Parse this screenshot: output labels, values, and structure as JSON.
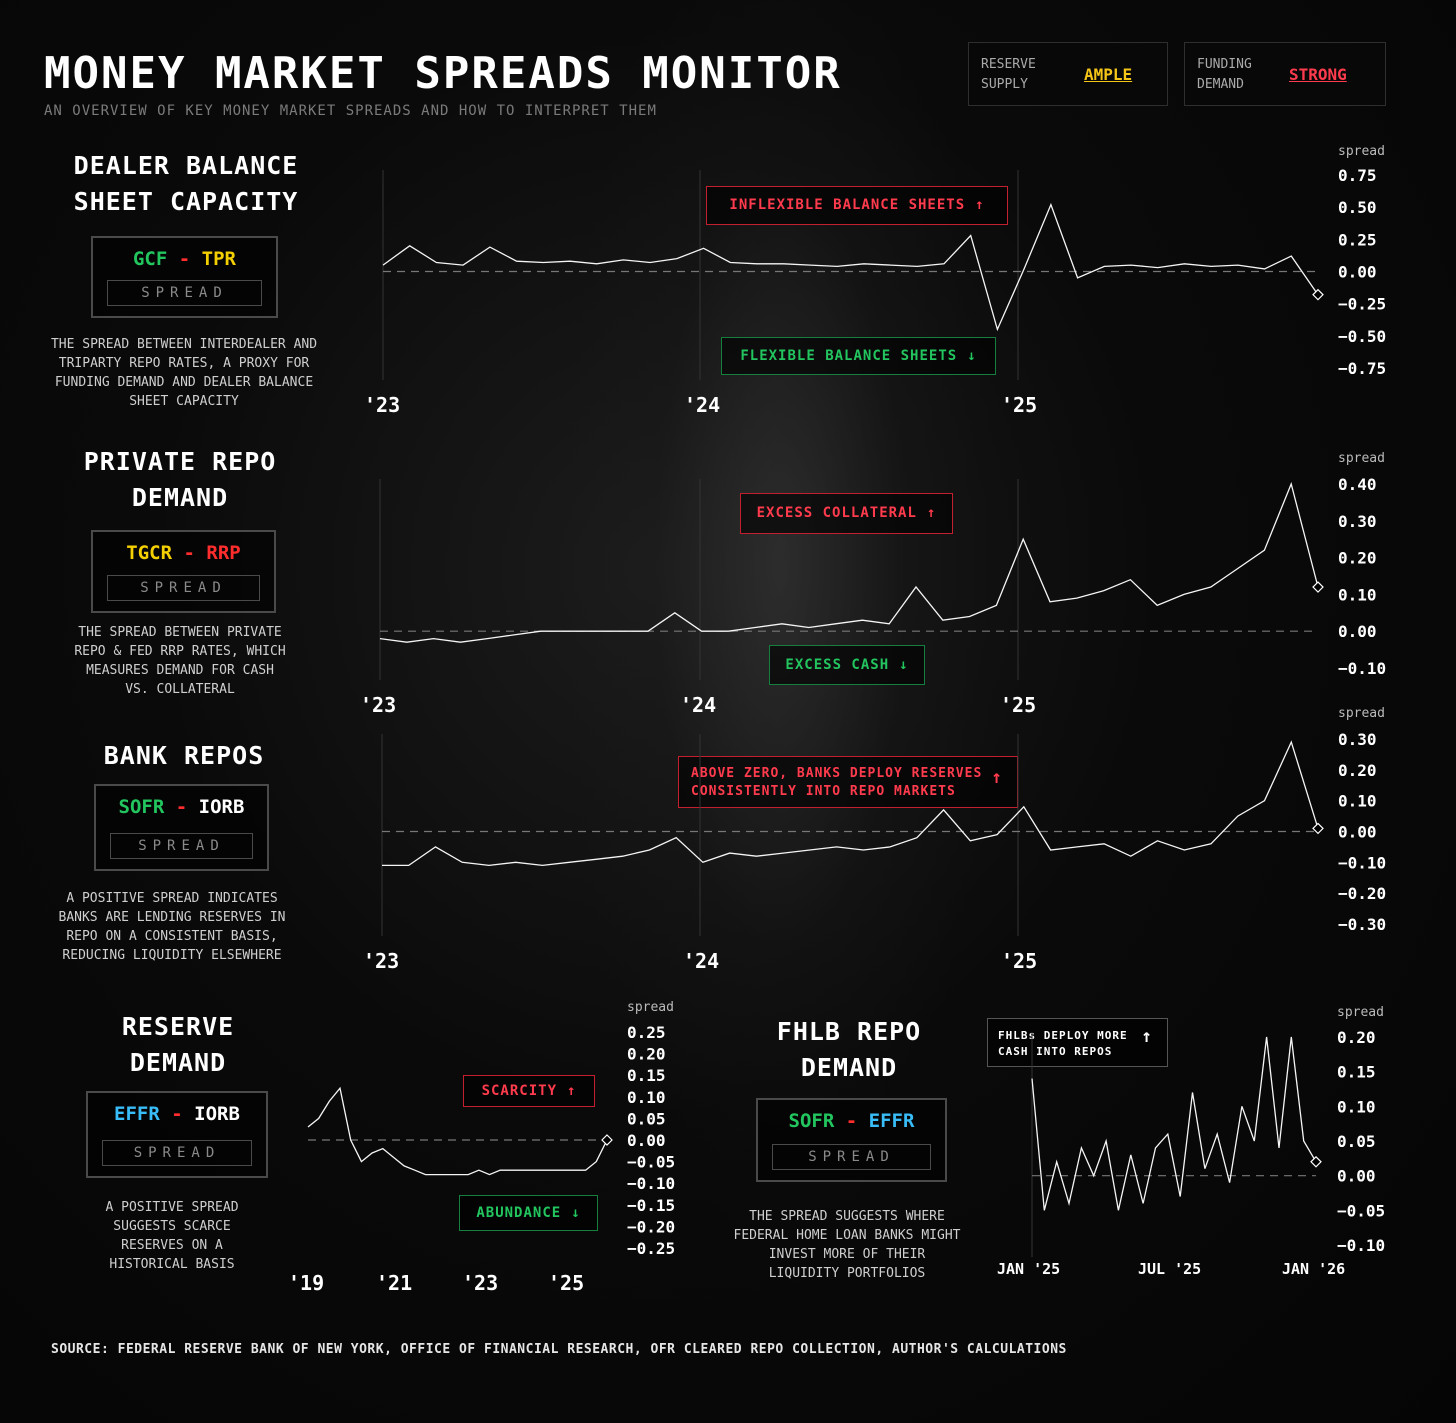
{
  "header": {
    "title": "MONEY MARKET SPREADS MONITOR",
    "subtitle": "AN OVERVIEW OF KEY MONEY MARKET SPREADS AND HOW TO INTERPRET THEM"
  },
  "indicators": [
    {
      "label": "RESERVE\nSUPPLY",
      "value": "AMPLE",
      "color": "#f5c518"
    },
    {
      "label": "FUNDING\nDEMAND",
      "value": "STRONG",
      "color": "#ff3b4d"
    }
  ],
  "colors": {
    "green": "#22c55e",
    "yellow": "#f5d000",
    "red": "#ff2d2d",
    "blue": "#38bdf8",
    "white": "#ffffff"
  },
  "sections": {
    "dealer": {
      "title_line1": "DEALER BALANCE",
      "title_line2": "SHEET CAPACITY",
      "pair_a": "GCF",
      "pair_sep": "-",
      "pair_b": "TPR",
      "spread_label": "SPREAD",
      "desc": [
        "THE SPREAD BETWEEN INTERDEALER AND",
        "TRIPARTY REPO RATES, A PROXY FOR",
        "FUNDING DEMAND AND DEALER BALANCE",
        "SHEET CAPACITY"
      ],
      "ann_up": "INFLEXIBLE BALANCE SHEETS",
      "ann_down": "FLEXIBLE BALANCE SHEETS",
      "arrow_up": "↑",
      "arrow_down": "↓"
    },
    "private": {
      "title_line1": "PRIVATE REPO",
      "title_line2": "DEMAND",
      "pair_a": "TGCR",
      "pair_sep": "-",
      "pair_b": "RRP",
      "spread_label": "SPREAD",
      "desc": [
        "THE SPREAD BETWEEN PRIVATE",
        "REPO & FED RRP RATES, WHICH",
        "MEASURES DEMAND FOR CASH",
        "VS. COLLATERAL"
      ],
      "ann_up": "EXCESS COLLATERAL",
      "ann_down": "EXCESS CASH",
      "arrow_up": "↑",
      "arrow_down": "↓"
    },
    "bank": {
      "title_line1": "BANK REPOS",
      "pair_a": "SOFR",
      "pair_sep": "-",
      "pair_b": "IORB",
      "spread_label": "SPREAD",
      "desc": [
        "A POSITIVE SPREAD INDICATES",
        "BANKS ARE LENDING RESERVES IN",
        "REPO ON A CONSISTENT BASIS,",
        "REDUCING LIQUIDITY ELSEWHERE"
      ],
      "ann_up_line1": "ABOVE ZERO, BANKS DEPLOY RESERVES",
      "ann_up_line2": "CONSISTENTLY INTO REPO MARKETS",
      "arrow_up": "↑"
    },
    "reserve": {
      "title_line1": "RESERVE",
      "title_line2": "DEMAND",
      "pair_a": "EFFR",
      "pair_sep": "-",
      "pair_b": "IORB",
      "spread_label": "SPREAD",
      "desc": [
        "A POSITIVE SPREAD",
        "SUGGESTS SCARCE",
        "RESERVES ON A",
        "HISTORICAL BASIS"
      ],
      "ann_up": "SCARCITY",
      "ann_down": "ABUNDANCE",
      "arrow_up": "↑",
      "arrow_down": "↓"
    },
    "fhlb": {
      "title_line1": "FHLB REPO",
      "title_line2": "DEMAND",
      "pair_a": "SOFR",
      "pair_sep": "-",
      "pair_b": "EFFR",
      "spread_label": "SPREAD",
      "desc": [
        "THE SPREAD SUGGESTS WHERE",
        "FEDERAL HOME LOAN BANKS MIGHT",
        "INVEST MORE OF THEIR",
        "LIQUIDITY PORTFOLIOS"
      ],
      "ann_up_line1": "FHLBs DEPLOY MORE",
      "ann_up_line2": "CASH INTO REPOS",
      "arrow_up": "↑"
    }
  },
  "source": "SOURCE: FEDERAL RESERVE BANK OF NEW YORK, OFFICE OF FINANCIAL RESEARCH, OFR CLEARED REPO COLLECTION, AUTHOR'S CALCULATIONS",
  "chart_data": [
    {
      "id": "dealer",
      "type": "line",
      "ylabel": "spread",
      "ylim": [
        -0.75,
        0.75
      ],
      "yticks": [
        "0.75",
        "0.50",
        "0.25",
        "0.00",
        "−0.25",
        "−0.50",
        "−0.75"
      ],
      "xticks": [
        "'23",
        "'24",
        "'25"
      ],
      "xrange": [
        "2023-01",
        "2026-01"
      ],
      "series": [
        {
          "x": [
            "2023-01",
            "2023-02",
            "2023-03",
            "2023-04",
            "2023-05",
            "2023-06",
            "2023-07",
            "2023-08",
            "2023-09",
            "2023-10",
            "2023-11",
            "2023-12",
            "2024-01",
            "2024-02",
            "2024-03",
            "2024-04",
            "2024-05",
            "2024-06",
            "2024-07",
            "2024-08",
            "2024-09",
            "2024-10",
            "2024-11",
            "2024-12",
            "2025-01",
            "2025-02",
            "2025-03",
            "2025-04",
            "2025-05",
            "2025-06",
            "2025-07",
            "2025-08",
            "2025-09",
            "2025-10",
            "2025-11",
            "2025-12"
          ],
          "values": [
            0.05,
            0.2,
            0.07,
            0.05,
            0.19,
            0.08,
            0.07,
            0.08,
            0.06,
            0.09,
            0.07,
            0.1,
            0.18,
            0.07,
            0.06,
            0.06,
            0.05,
            0.04,
            0.06,
            0.05,
            0.04,
            0.06,
            0.28,
            -0.45,
            0.02,
            0.52,
            -0.05,
            0.04,
            0.05,
            0.03,
            0.06,
            0.04,
            0.05,
            0.02,
            0.12,
            -0.18
          ]
        }
      ]
    },
    {
      "id": "private",
      "type": "line",
      "ylabel": "spread",
      "ylim": [
        -0.1,
        0.4
      ],
      "yticks": [
        "0.40",
        "0.30",
        "0.20",
        "0.10",
        "0.00",
        "−0.10"
      ],
      "xticks": [
        "'23",
        "'24",
        "'25"
      ],
      "xrange": [
        "2023-01",
        "2026-01"
      ],
      "series": [
        {
          "x": [
            "2023-01",
            "2023-02",
            "2023-03",
            "2023-04",
            "2023-05",
            "2023-06",
            "2023-07",
            "2023-08",
            "2023-09",
            "2023-10",
            "2023-11",
            "2023-12",
            "2024-01",
            "2024-02",
            "2024-03",
            "2024-04",
            "2024-05",
            "2024-06",
            "2024-07",
            "2024-08",
            "2024-09",
            "2024-10",
            "2024-11",
            "2024-12",
            "2025-01",
            "2025-02",
            "2025-03",
            "2025-04",
            "2025-05",
            "2025-06",
            "2025-07",
            "2025-08",
            "2025-09",
            "2025-10",
            "2025-11",
            "2025-12"
          ],
          "values": [
            -0.02,
            -0.03,
            -0.02,
            -0.03,
            -0.02,
            -0.01,
            0.0,
            0.0,
            0.0,
            0.0,
            0.0,
            0.05,
            0.0,
            0.0,
            0.01,
            0.02,
            0.01,
            0.02,
            0.03,
            0.02,
            0.12,
            0.03,
            0.04,
            0.07,
            0.25,
            0.08,
            0.09,
            0.11,
            0.14,
            0.07,
            0.1,
            0.12,
            0.17,
            0.22,
            0.4,
            0.12
          ]
        }
      ]
    },
    {
      "id": "bank",
      "type": "line",
      "ylabel": "spread",
      "ylim": [
        -0.3,
        0.3
      ],
      "yticks": [
        "0.30",
        "0.20",
        "0.10",
        "0.00",
        "−0.10",
        "−0.20",
        "−0.30"
      ],
      "xticks": [
        "'23",
        "'24",
        "'25"
      ],
      "xrange": [
        "2023-01",
        "2026-01"
      ],
      "series": [
        {
          "x": [
            "2023-01",
            "2023-02",
            "2023-03",
            "2023-04",
            "2023-05",
            "2023-06",
            "2023-07",
            "2023-08",
            "2023-09",
            "2023-10",
            "2023-11",
            "2023-12",
            "2024-01",
            "2024-02",
            "2024-03",
            "2024-04",
            "2024-05",
            "2024-06",
            "2024-07",
            "2024-08",
            "2024-09",
            "2024-10",
            "2024-11",
            "2024-12",
            "2025-01",
            "2025-02",
            "2025-03",
            "2025-04",
            "2025-05",
            "2025-06",
            "2025-07",
            "2025-08",
            "2025-09",
            "2025-10",
            "2025-11",
            "2025-12"
          ],
          "values": [
            -0.11,
            -0.11,
            -0.05,
            -0.1,
            -0.11,
            -0.1,
            -0.11,
            -0.1,
            -0.09,
            -0.08,
            -0.06,
            -0.02,
            -0.1,
            -0.07,
            -0.08,
            -0.07,
            -0.06,
            -0.05,
            -0.06,
            -0.05,
            -0.02,
            0.07,
            -0.03,
            -0.01,
            0.08,
            -0.06,
            -0.05,
            -0.04,
            -0.08,
            -0.03,
            -0.06,
            -0.04,
            0.05,
            0.1,
            0.29,
            0.01
          ]
        }
      ]
    },
    {
      "id": "reserve",
      "type": "line",
      "ylabel": "spread",
      "ylim": [
        -0.25,
        0.25
      ],
      "yticks": [
        "0.25",
        "0.20",
        "0.15",
        "0.10",
        "0.05",
        "0.00",
        "−0.05",
        "−0.10",
        "−0.15",
        "−0.20",
        "−0.25"
      ],
      "xticks": [
        "'19",
        "'21",
        "'23",
        "'25"
      ],
      "xrange": [
        "2019-01",
        "2026-01"
      ],
      "series": [
        {
          "x": [
            "2019-01",
            "2019-04",
            "2019-07",
            "2019-10",
            "2020-01",
            "2020-04",
            "2020-07",
            "2020-10",
            "2021-01",
            "2021-04",
            "2021-07",
            "2021-10",
            "2022-01",
            "2022-04",
            "2022-07",
            "2022-10",
            "2023-01",
            "2023-04",
            "2023-07",
            "2023-10",
            "2024-01",
            "2024-04",
            "2024-07",
            "2024-10",
            "2025-01",
            "2025-04",
            "2025-07",
            "2025-10",
            "2025-12"
          ],
          "values": [
            0.03,
            0.05,
            0.09,
            0.12,
            0.0,
            -0.05,
            -0.03,
            -0.02,
            -0.04,
            -0.06,
            -0.07,
            -0.08,
            -0.08,
            -0.08,
            -0.08,
            -0.08,
            -0.07,
            -0.08,
            -0.07,
            -0.07,
            -0.07,
            -0.07,
            -0.07,
            -0.07,
            -0.07,
            -0.07,
            -0.07,
            -0.05,
            0.0
          ]
        }
      ]
    },
    {
      "id": "fhlb",
      "type": "line",
      "ylabel": "spread",
      "ylim": [
        -0.1,
        0.2
      ],
      "yticks": [
        "0.20",
        "0.15",
        "0.10",
        "0.05",
        "0.00",
        "−0.05",
        "−0.10"
      ],
      "xticks": [
        "JAN '25",
        "JUL '25",
        "JAN '26"
      ],
      "xrange": [
        "2025-01",
        "2026-01"
      ],
      "series": [
        {
          "x": [
            "2025-01",
            "2025-01b",
            "2025-02",
            "2025-02b",
            "2025-03",
            "2025-03b",
            "2025-04",
            "2025-04b",
            "2025-05",
            "2025-05b",
            "2025-06",
            "2025-06b",
            "2025-07",
            "2025-07b",
            "2025-08",
            "2025-08b",
            "2025-09",
            "2025-09b",
            "2025-10",
            "2025-10b",
            "2025-11",
            "2025-11b",
            "2025-12",
            "2025-12b"
          ],
          "values": [
            0.14,
            -0.05,
            0.02,
            -0.04,
            0.04,
            0.0,
            0.05,
            -0.05,
            0.03,
            -0.04,
            0.04,
            0.06,
            -0.03,
            0.12,
            0.01,
            0.06,
            -0.01,
            0.1,
            0.05,
            0.2,
            0.04,
            0.2,
            0.05,
            0.02
          ]
        }
      ]
    }
  ]
}
